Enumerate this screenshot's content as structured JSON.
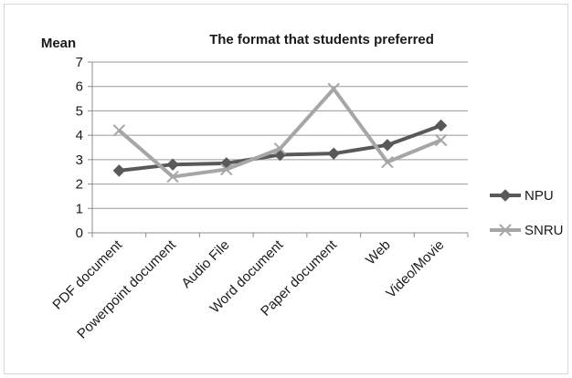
{
  "chart_data": {
    "type": "line",
    "title": "The format that students preferred",
    "xlabel": "",
    "ylabel": "Mean",
    "ylim": [
      0,
      7
    ],
    "yticks": [
      "0",
      "1",
      "2",
      "3",
      "4",
      "5",
      "6",
      "7"
    ],
    "grid": true,
    "legend_position": "right",
    "categories": [
      "PDF document",
      "Powerpoint document",
      "Audio File",
      "Word document",
      "Paper document",
      "Web",
      "Video/Movie"
    ],
    "series": [
      {
        "name": "NPU",
        "values": [
          2.55,
          2.8,
          2.85,
          3.2,
          3.25,
          3.6,
          4.4
        ],
        "color": "#595959",
        "marker": "diamond"
      },
      {
        "name": "SNRU",
        "values": [
          4.2,
          2.3,
          2.6,
          3.45,
          5.9,
          2.9,
          3.8
        ],
        "color": "#a6a6a6",
        "marker": "x"
      }
    ]
  }
}
